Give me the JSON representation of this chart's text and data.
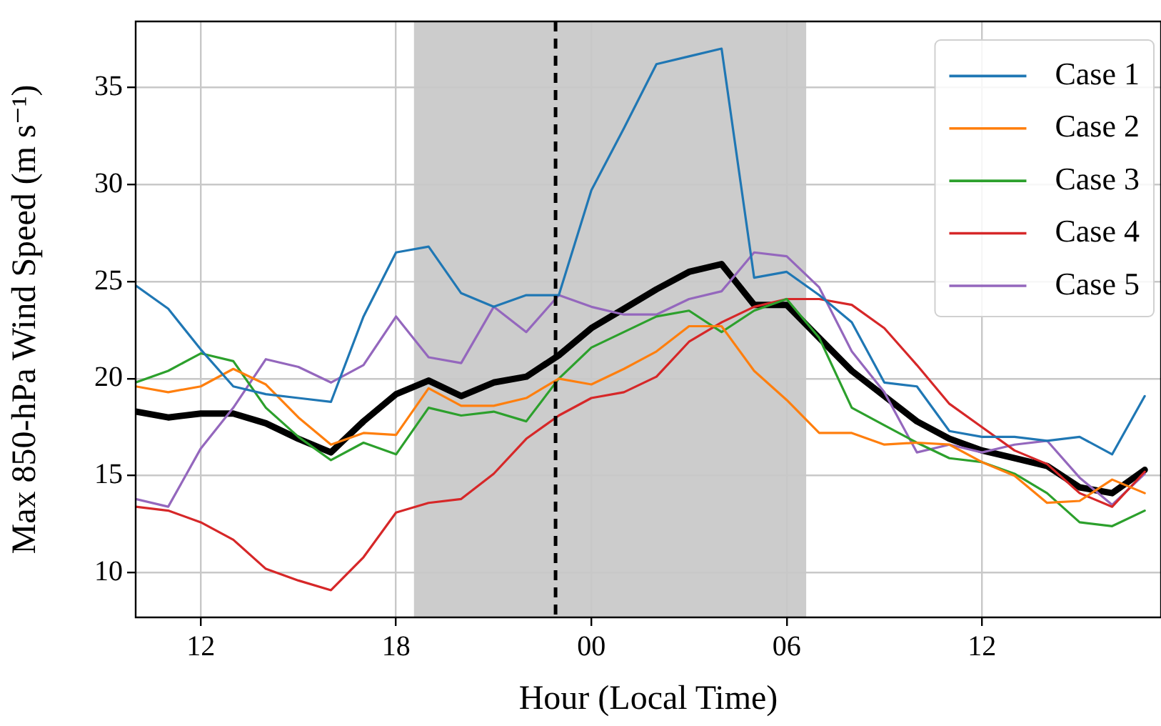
{
  "chart_data": {
    "type": "line",
    "xlabel": "Hour (Local Time)",
    "ylabel": "Max 850-hPa Wind Speed (m s⁻¹)",
    "x": [
      10,
      11,
      12,
      13,
      14,
      15,
      16,
      17,
      18,
      19,
      20,
      21,
      22,
      23,
      24,
      25,
      26,
      27,
      28,
      29,
      30,
      31,
      32,
      33,
      34,
      35,
      36,
      37,
      38,
      39,
      40,
      41
    ],
    "series": [
      {
        "name": "Case 1",
        "color": "#1f77b4",
        "values": [
          24.8,
          23.6,
          21.5,
          19.6,
          19.2,
          19.0,
          18.8,
          23.2,
          26.5,
          26.8,
          24.4,
          23.7,
          24.3,
          24.3,
          29.7,
          32.9,
          36.2,
          36.6,
          37.0,
          25.2,
          25.5,
          24.3,
          22.9,
          19.8,
          19.6,
          17.3,
          17.0,
          17.0,
          16.8,
          17.0,
          16.1,
          19.1
        ]
      },
      {
        "name": "Case 2",
        "color": "#ff7f0e",
        "values": [
          19.6,
          19.3,
          19.6,
          20.5,
          19.7,
          18.0,
          16.6,
          17.2,
          17.1,
          19.5,
          18.6,
          18.6,
          19.0,
          20.0,
          19.7,
          20.5,
          21.4,
          22.7,
          22.7,
          20.4,
          18.9,
          17.2,
          17.2,
          16.6,
          16.7,
          16.6,
          15.7,
          15.0,
          13.6,
          13.7,
          14.8,
          14.1
        ]
      },
      {
        "name": "Case 3",
        "color": "#2ca02c",
        "values": [
          19.8,
          20.4,
          21.3,
          20.9,
          18.5,
          17.0,
          15.8,
          16.7,
          16.1,
          18.5,
          18.1,
          18.3,
          17.8,
          20.0,
          21.6,
          22.4,
          23.2,
          23.5,
          22.4,
          23.5,
          24.1,
          22.1,
          18.5,
          17.6,
          16.7,
          15.9,
          15.7,
          15.1,
          14.1,
          12.6,
          12.4,
          13.2
        ]
      },
      {
        "name": "Case 4",
        "color": "#d62728",
        "values": [
          13.4,
          13.2,
          12.6,
          11.7,
          10.2,
          9.6,
          9.1,
          10.8,
          13.1,
          13.6,
          13.8,
          15.1,
          16.9,
          18.1,
          19.0,
          19.3,
          20.1,
          21.9,
          22.9,
          23.7,
          24.1,
          24.1,
          23.8,
          22.6,
          20.7,
          18.7,
          17.5,
          16.3,
          15.6,
          14.1,
          13.4,
          15.2
        ]
      },
      {
        "name": "Case 5",
        "color": "#9467bd",
        "values": [
          13.8,
          13.4,
          16.4,
          18.5,
          21.0,
          20.6,
          19.8,
          20.7,
          23.2,
          21.1,
          20.8,
          23.7,
          22.4,
          24.3,
          23.7,
          23.3,
          23.3,
          24.1,
          24.5,
          26.5,
          26.3,
          24.7,
          21.4,
          19.3,
          16.2,
          16.6,
          16.2,
          16.6,
          16.8,
          14.9,
          13.5,
          15.1
        ]
      },
      {
        "color": "#000000",
        "values": [
          18.3,
          18.0,
          18.2,
          18.2,
          17.7,
          16.9,
          16.2,
          17.8,
          19.2,
          19.9,
          19.1,
          19.8,
          20.1,
          21.2,
          22.6,
          23.6,
          24.6,
          25.5,
          25.9,
          23.8,
          23.8,
          22.1,
          20.4,
          19.1,
          17.8,
          16.9,
          16.3,
          15.9,
          15.5,
          14.4,
          14.1,
          15.3
        ]
      }
    ],
    "xlim": [
      10,
      41.5
    ],
    "ylim": [
      7.7,
      38.4
    ],
    "xticks": [
      {
        "value": 12,
        "label": "12"
      },
      {
        "value": 18,
        "label": "18"
      },
      {
        "value": 24,
        "label": "00"
      },
      {
        "value": 30,
        "label": "06"
      },
      {
        "value": 36,
        "label": "12"
      }
    ],
    "yticks": [
      10,
      15,
      20,
      25,
      30,
      35
    ],
    "bands": [
      {
        "axis": "x",
        "from": 18.55,
        "to": 30.6,
        "color": "#cccccc"
      }
    ],
    "ref_lines": [
      {
        "axis": "x",
        "value": 22.9,
        "color": "#000000",
        "line_style": "dashed"
      }
    ],
    "grid": true,
    "legend": "top right",
    "marker": "none",
    "line_style": "solid"
  }
}
